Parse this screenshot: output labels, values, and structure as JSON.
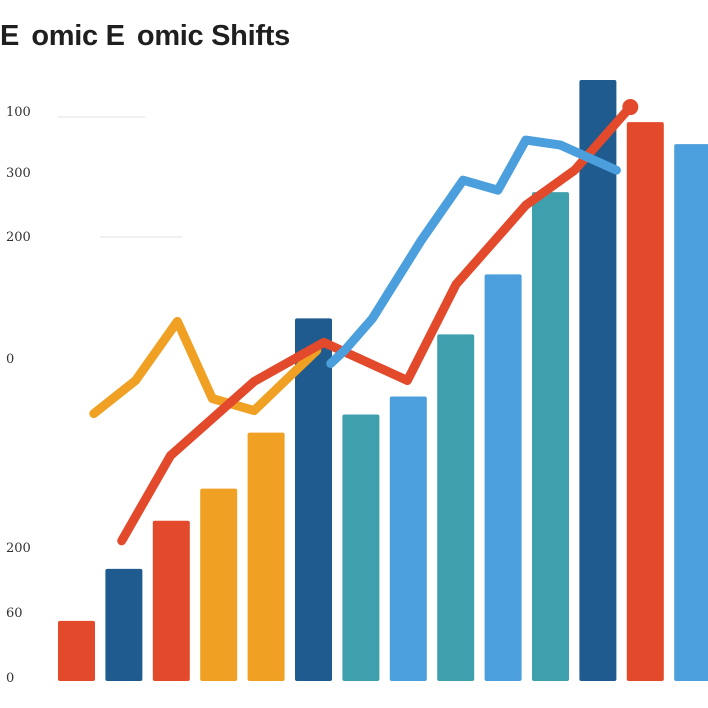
{
  "chart_data": {
    "type": "bar",
    "title": "E  omic  E  omic Shifts",
    "y_tick_labels": [
      "100",
      "300",
      "200",
      "",
      "0",
      "",
      "200",
      "60",
      "0"
    ],
    "bars": [
      {
        "value": 60,
        "color": "#e24a2b"
      },
      {
        "value": 112,
        "color": "#1f5b8e"
      },
      {
        "value": 160,
        "color": "#e24a2b"
      },
      {
        "value": 192,
        "color": "#f0a023"
      },
      {
        "value": 248,
        "color": "#f0a023"
      },
      {
        "value": 362,
        "color": "#1f5b8e"
      },
      {
        "value": 266,
        "color": "#3ea0ad"
      },
      {
        "value": 284,
        "color": "#4a9fdc"
      },
      {
        "value": 346,
        "color": "#3ea0ad"
      },
      {
        "value": 406,
        "color": "#4a9fdc"
      },
      {
        "value": 488,
        "color": "#3ea0ad"
      },
      {
        "value": 600,
        "color": "#1f5b8e"
      },
      {
        "value": 558,
        "color": "#e24a2b"
      },
      {
        "value": 536,
        "color": "#4a9fdc"
      }
    ],
    "lines": [
      {
        "color": "#f0a023",
        "x": [
          0,
          0.6,
          1.2,
          1.7,
          2.3,
          3.2
        ],
        "y": [
          267,
          300,
          359,
          282,
          270,
          330
        ]
      },
      {
        "color": "#e24a2b",
        "x": [
          0.4,
          1.1,
          2.3,
          3.3,
          4.5,
          5.2,
          6.2,
          6.9,
          7.7
        ],
        "y": [
          140,
          225,
          299,
          338,
          300,
          396,
          475,
          510,
          573
        ]
      },
      {
        "color": "#4a9fdc",
        "x": [
          3.4,
          3.6,
          4.0,
          4.7,
          5.3,
          5.8,
          6.2,
          6.7,
          7.5
        ],
        "y": [
          317,
          330,
          362,
          440,
          500,
          490,
          540,
          535,
          510
        ]
      }
    ],
    "ylim": [
      0,
      600
    ],
    "xlim": [
      -0.6,
      8.7
    ],
    "grid": false,
    "legend": false,
    "xlabel": "",
    "ylabel": ""
  }
}
